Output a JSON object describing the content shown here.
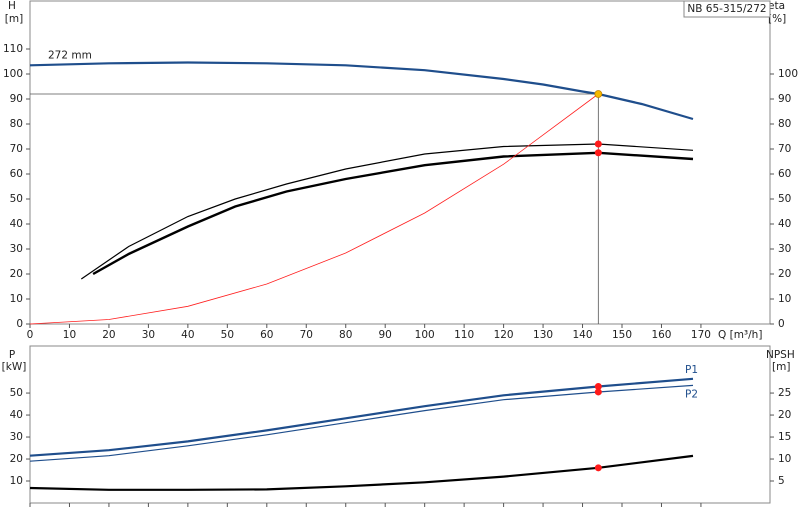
{
  "chart_data": [
    {
      "type": "line",
      "model_label": "NB 65-315/272",
      "y_label": "H",
      "y_unit": "[m]",
      "y2_label": "eta",
      "y2_unit": "[%]",
      "x_label": "Q [m³/h]",
      "xlim": [
        0,
        187.5
      ],
      "xticks": [
        0,
        10,
        20,
        30,
        40,
        50,
        60,
        70,
        80,
        90,
        100,
        110,
        120,
        130,
        140,
        150,
        160,
        170
      ],
      "ylim": [
        0,
        129.2
      ],
      "yticks": [
        0,
        10,
        20,
        30,
        40,
        50,
        60,
        70,
        80,
        90,
        100,
        110
      ],
      "y2lim": [
        0,
        129.2
      ],
      "y2ticks": [
        0,
        10,
        20,
        30,
        40,
        50,
        60,
        70,
        80,
        90,
        100
      ],
      "grid": false,
      "series": [
        {
          "name": "272 mm",
          "color": "#1f4e8c",
          "linewidth": 2.2,
          "x": [
            0,
            20,
            40,
            60,
            80,
            100,
            120,
            130,
            140,
            144,
            155,
            168
          ],
          "values": [
            103.5,
            104.3,
            104.6,
            104.3,
            103.5,
            101.5,
            98,
            95.8,
            93,
            92,
            88,
            82
          ]
        },
        {
          "color": "#000000",
          "linewidth": 1.2,
          "axis": "y2",
          "x": [
            13,
            25,
            40,
            52,
            65,
            80,
            100,
            120,
            144,
            168
          ],
          "values": [
            18,
            31,
            43,
            50,
            56,
            62,
            68,
            71,
            72,
            69.5
          ]
        },
        {
          "color": "#000000",
          "linewidth": 2.4,
          "axis": "y2",
          "x": [
            16,
            25,
            40,
            52,
            65,
            80,
            100,
            120,
            144,
            168
          ],
          "values": [
            20,
            28,
            39,
            47,
            53,
            58,
            63.5,
            67,
            68.5,
            66
          ]
        },
        {
          "color": "#ff2020",
          "linewidth": 0.8,
          "x": [
            0,
            20,
            40,
            60,
            80,
            100,
            120,
            144
          ],
          "values": [
            0,
            1.8,
            7.1,
            16,
            28.4,
            44.4,
            63.9,
            92
          ]
        }
      ],
      "duty_point": {
        "x": 144,
        "y": 92
      },
      "markers": [
        {
          "x": 144,
          "y": 92,
          "color": "#f5b800"
        },
        {
          "x": 144,
          "y": 72,
          "color": "#ff1a1a",
          "axis": "y2"
        },
        {
          "x": 144,
          "y": 68.5,
          "color": "#ff1a1a",
          "axis": "y2"
        }
      ]
    },
    {
      "type": "line",
      "y_label": "P",
      "y_unit": "[kW]",
      "y2_label": "NPSH",
      "y2_unit": "[m]",
      "xlim": [
        0,
        187.5
      ],
      "xticks": [
        0,
        10,
        20,
        30,
        40,
        50,
        60,
        70,
        80,
        90,
        100,
        110,
        120,
        130,
        140,
        150,
        160,
        170
      ],
      "ylim": [
        0,
        71.4
      ],
      "yticks": [
        10,
        20,
        30,
        40,
        50
      ],
      "y2lim": [
        0,
        35.7
      ],
      "y2ticks": [
        5,
        10,
        15,
        20,
        25
      ],
      "grid": false,
      "series": [
        {
          "name": "P1",
          "color": "#1f4e8c",
          "linewidth": 2.2,
          "x": [
            0,
            20,
            40,
            60,
            80,
            100,
            120,
            144,
            168
          ],
          "values": [
            21.5,
            24,
            28,
            33,
            38.5,
            44,
            49,
            53,
            56.5
          ]
        },
        {
          "name": "P2",
          "color": "#1f4e8c",
          "linewidth": 1.2,
          "x": [
            0,
            20,
            40,
            60,
            80,
            100,
            120,
            144,
            168
          ],
          "values": [
            19,
            21.5,
            26,
            31,
            36.5,
            42,
            47,
            50.5,
            53.5
          ]
        },
        {
          "color": "#000000",
          "linewidth": 2.2,
          "axis": "y2",
          "x": [
            0,
            20,
            40,
            60,
            80,
            100,
            120,
            144,
            168
          ],
          "values": [
            3.4,
            3,
            3,
            3.1,
            3.8,
            4.7,
            6,
            8,
            10.7
          ]
        }
      ],
      "markers": [
        {
          "x": 144,
          "y": 53,
          "color": "#ff1a1a"
        },
        {
          "x": 144,
          "y": 50.5,
          "color": "#ff1a1a"
        },
        {
          "x": 144,
          "y": 8,
          "color": "#ff1a1a",
          "axis": "y2"
        }
      ]
    }
  ]
}
